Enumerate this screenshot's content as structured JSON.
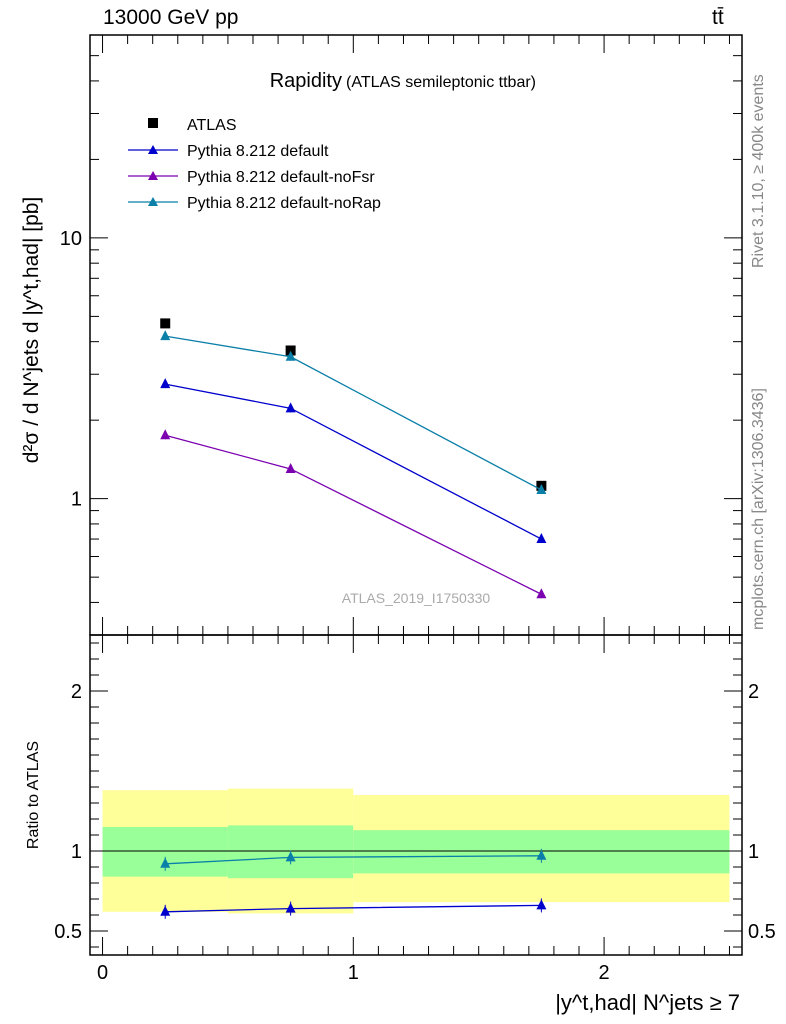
{
  "header": {
    "left": "13000 GeV pp",
    "right": "tt̄"
  },
  "side_text": {
    "rivet": "Rivet 3.1.10, ≥ 400k events",
    "mcplots": "mcplots.cern.ch [arXiv:1306.3436]"
  },
  "chart_data": [
    {
      "type": "scatter",
      "panel": "main",
      "title": "Rapidity",
      "subtitle": "(ATLAS semileptonic ttbar)",
      "watermark": "ATLAS_2019_I1750330",
      "ylabel": "d²σ / d N^jets d |y^t,had| [pb]",
      "yscale": "log",
      "ylim": [
        0.3,
        60
      ],
      "yticks": [
        {
          "v": 1,
          "label": "1"
        },
        {
          "v": 10,
          "label": "10"
        }
      ],
      "xlim": [
        -0.05,
        2.55
      ],
      "grid": false,
      "legend_position": "top-left",
      "series": [
        {
          "name": "ATLAS",
          "color": "#000000",
          "marker": "square",
          "line": false,
          "x": [
            0.25,
            0.75,
            1.75
          ],
          "y": [
            4.7,
            3.7,
            1.12
          ],
          "xerr": [
            0.25,
            0.25,
            0.75
          ]
        },
        {
          "name": "Pythia 8.212 default",
          "color": "#0000cc",
          "marker": "triangle",
          "line": true,
          "x": [
            0.25,
            0.75,
            1.75
          ],
          "y": [
            2.75,
            2.22,
            0.7
          ]
        },
        {
          "name": "Pythia 8.212 default-noFsr",
          "color": "#7b00b0",
          "marker": "triangle",
          "line": true,
          "x": [
            0.25,
            0.75,
            1.75
          ],
          "y": [
            1.75,
            1.3,
            0.43
          ]
        },
        {
          "name": "Pythia 8.212 default-noRap",
          "color": "#0a7fa8",
          "marker": "triangle",
          "line": true,
          "x": [
            0.25,
            0.75,
            1.75
          ],
          "y": [
            4.2,
            3.5,
            1.08
          ]
        }
      ]
    },
    {
      "type": "scatter",
      "panel": "ratio",
      "ylabel": "Ratio to ATLAS",
      "xlabel": "|y^t,had| N^jets ≥ 7",
      "ylim": [
        0.35,
        2.35
      ],
      "xlim": [
        -0.05,
        2.55
      ],
      "yticks": [
        {
          "v": 0.5,
          "label": "0.5"
        },
        {
          "v": 1,
          "label": "1"
        },
        {
          "v": 2,
          "label": "2"
        }
      ],
      "xticks": [
        {
          "v": 0,
          "label": "0"
        },
        {
          "v": 1,
          "label": "1"
        },
        {
          "v": 2,
          "label": "2"
        }
      ],
      "reference_line": 1,
      "bands": {
        "bins": [
          [
            0,
            0.5
          ],
          [
            0.5,
            1.0
          ],
          [
            1.0,
            2.5
          ]
        ],
        "outer": {
          "color": "#ffff99",
          "lo": [
            0.62,
            0.61,
            0.68
          ],
          "hi": [
            1.38,
            1.39,
            1.35
          ]
        },
        "inner": {
          "color": "#99ff99",
          "lo": [
            0.84,
            0.83,
            0.86
          ],
          "hi": [
            1.15,
            1.16,
            1.13
          ]
        }
      },
      "series": [
        {
          "name": "Pythia 8.212 default",
          "color": "#0000cc",
          "x": [
            0.25,
            0.75,
            1.75
          ],
          "y": [
            0.62,
            0.64,
            0.66
          ]
        },
        {
          "name": "Pythia 8.212 default-noRap",
          "color": "#0a7fa8",
          "x": [
            0.25,
            0.75,
            1.75
          ],
          "y": [
            0.92,
            0.96,
            0.97
          ]
        }
      ]
    }
  ]
}
